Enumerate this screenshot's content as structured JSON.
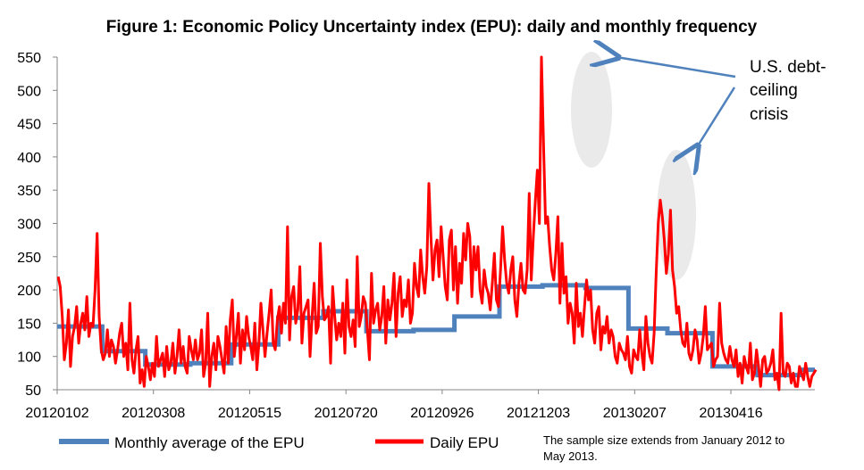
{
  "chart_data": {
    "type": "line",
    "title": "Figure 1: Economic Policy Uncertainty index (EPU): daily and monthly frequency",
    "xlabel": "",
    "ylabel": "",
    "ylim": [
      50,
      550
    ],
    "yticks": [
      50,
      100,
      150,
      200,
      250,
      300,
      350,
      400,
      450,
      500,
      550
    ],
    "xtick_labels": [
      "20120102",
      "20120308",
      "20120515",
      "20120720",
      "20120926",
      "20121203",
      "20130207",
      "20130416"
    ],
    "xtick_positions": [
      0,
      47,
      94,
      141,
      188,
      235,
      282,
      329
    ],
    "n_points": 370,
    "grid": false,
    "legend_position": "bottom",
    "colors": {
      "monthly": "#4F81BD",
      "daily": "#FF0000",
      "ellipse": "#D9D9D9",
      "arrow": "#4F81BD"
    },
    "series": [
      {
        "name": "Monthly average of the EPU",
        "kind": "step",
        "steps": [
          {
            "start": 0,
            "end": 22,
            "value": 145
          },
          {
            "start": 22,
            "end": 43,
            "value": 108
          },
          {
            "start": 43,
            "end": 65,
            "value": 88
          },
          {
            "start": 65,
            "end": 85,
            "value": 90
          },
          {
            "start": 85,
            "end": 108,
            "value": 118
          },
          {
            "start": 108,
            "end": 130,
            "value": 158
          },
          {
            "start": 130,
            "end": 151,
            "value": 168
          },
          {
            "start": 151,
            "end": 174,
            "value": 138
          },
          {
            "start": 174,
            "end": 194,
            "value": 140
          },
          {
            "start": 194,
            "end": 216,
            "value": 160
          },
          {
            "start": 216,
            "end": 237,
            "value": 205
          },
          {
            "start": 237,
            "end": 258,
            "value": 207
          },
          {
            "start": 258,
            "end": 279,
            "value": 203
          },
          {
            "start": 279,
            "end": 298,
            "value": 142
          },
          {
            "start": 298,
            "end": 320,
            "value": 135
          },
          {
            "start": 320,
            "end": 342,
            "value": 85
          },
          {
            "start": 342,
            "end": 363,
            "value": 72
          },
          {
            "start": 363,
            "end": 370,
            "value": 80
          }
        ]
      },
      {
        "name": "Daily EPU",
        "kind": "line",
        "values": [
          220,
          205,
          160,
          95,
          120,
          170,
          85,
          130,
          145,
          175,
          120,
          150,
          165,
          140,
          190,
          130,
          150,
          145,
          200,
          285,
          160,
          110,
          95,
          105,
          140,
          100,
          125,
          115,
          90,
          110,
          135,
          150,
          100,
          120,
          80,
          180,
          95,
          75,
          110,
          130,
          60,
          80,
          55,
          100,
          85,
          65,
          90,
          70,
          130,
          85,
          95,
          105,
          70,
          115,
          80,
          90,
          120,
          75,
          100,
          140,
          90,
          115,
          85,
          75,
          130,
          110,
          95,
          125,
          95,
          105,
          140,
          70,
          90,
          165,
          55,
          100,
          120,
          80,
          130,
          115,
          95,
          75,
          145,
          90,
          155,
          185,
          100,
          130,
          165,
          90,
          140,
          110,
          160,
          130,
          115,
          95,
          150,
          80,
          120,
          180,
          140,
          100,
          135,
          165,
          200,
          120,
          110,
          155,
          175,
          135,
          180,
          150,
          295,
          125,
          190,
          205,
          150,
          170,
          235,
          120,
          165,
          175,
          185,
          100,
          160,
          210,
          135,
          145,
          270,
          190,
          155,
          160,
          175,
          90,
          205,
          160,
          125,
          150,
          130,
          180,
          105,
          215,
          145,
          130,
          155,
          115,
          250,
          145,
          160,
          190,
          180,
          140,
          95,
          225,
          150,
          170,
          180,
          140,
          160,
          205,
          120,
          185,
          155,
          180,
          225,
          130,
          195,
          220,
          160,
          185,
          175,
          215,
          150,
          165,
          240,
          205,
          190,
          260,
          220,
          195,
          235,
          360,
          280,
          215,
          260,
          275,
          220,
          295,
          250,
          205,
          185,
          275,
          290,
          200,
          265,
          180,
          240,
          210,
          285,
          245,
          300,
          280,
          190,
          265,
          230,
          265,
          200,
          180,
          230,
          205,
          195,
          170,
          210,
          255,
          185,
          175,
          230,
          295,
          245,
          210,
          195,
          230,
          250,
          185,
          160,
          210,
          240,
          200,
          195,
          230,
          345,
          215,
          280,
          335,
          380,
          300,
          550,
          420,
          300,
          310,
          265,
          230,
          215,
          255,
          310,
          180,
          270,
          195,
          220,
          150,
          180,
          165,
          120,
          210,
          145,
          165,
          130,
          175,
          215,
          185,
          200,
          140,
          120,
          165,
          175,
          110,
          145,
          135,
          160,
          120,
          140,
          130,
          100,
          90,
          120,
          110,
          105,
          95,
          130,
          85,
          75,
          110,
          100,
          95,
          140,
          105,
          80,
          160,
          120,
          100,
          90,
          135,
          225,
          300,
          335,
          310,
          275,
          225,
          255,
          320,
          230,
          205,
          165,
          175,
          140,
          120,
          115,
          150,
          105,
          95,
          110,
          140,
          125,
          90,
          105,
          130,
          175,
          110,
          115,
          120,
          85,
          95,
          100,
          180,
          120,
          105,
          95,
          90,
          115,
          95,
          85,
          110,
          70,
          90,
          60,
          100,
          85,
          75,
          120,
          65,
          75,
          110,
          85,
          55,
          95,
          100,
          75,
          80,
          90,
          110,
          65,
          75,
          50,
          165,
          75,
          70,
          90,
          85,
          60,
          75,
          55,
          55,
          85,
          75,
          65,
          90,
          70,
          55,
          70,
          75,
          80
        ]
      }
    ],
    "annotations": [
      {
        "lines": [
          "U.S. debt-",
          "ceiling",
          "crisis"
        ]
      }
    ],
    "footnote": [
      "The sample size extends from January 2012 to",
      "May 2013."
    ]
  }
}
